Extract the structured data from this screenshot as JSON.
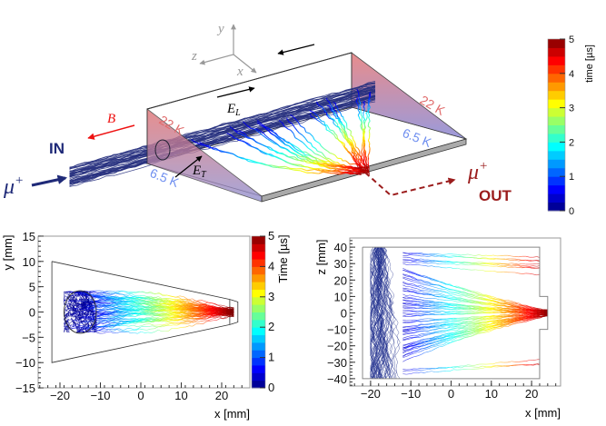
{
  "diagram": {
    "axes": {
      "x": "x",
      "y": "y",
      "z": "z"
    },
    "in_label": "IN",
    "out_label": "OUT",
    "muon": {
      "symbol": "μ",
      "sup": "+"
    },
    "b_field": {
      "symbol": "B"
    },
    "e_long": {
      "symbol": "E",
      "sub": "L"
    },
    "e_trans": {
      "symbol": "E",
      "sub": "T"
    },
    "temp_hot": "22 K",
    "temp_cold": "6.5 K",
    "colors": {
      "in": "#1f2a78",
      "out": "#9b1c1c",
      "b_field": "#ee1111",
      "hot": "#e06a6a",
      "cold": "#6f8ff0"
    },
    "colorbar": {
      "title": "time [µs]",
      "range": [
        0,
        5
      ],
      "ticks": [
        "0",
        "1",
        "2",
        "3",
        "4",
        "5"
      ]
    }
  },
  "chart_data": [
    {
      "type": "line",
      "title": "",
      "xlabel": "x [mm]",
      "ylabel": "y [mm]",
      "xlim": [
        -25,
        27
      ],
      "ylim": [
        -15,
        15
      ],
      "xticks": [
        "-20",
        "-10",
        "0",
        "10",
        "20"
      ],
      "yticks": [
        "-15",
        "-10",
        "-5",
        "0",
        "5",
        "10",
        "15"
      ],
      "outline": {
        "x": [
          -22,
          22,
          24,
          24,
          22,
          -22,
          -22
        ],
        "y": [
          10,
          2.5,
          2,
          -2,
          -2.5,
          -10,
          10
        ]
      },
      "stop_region": {
        "center": [
          -15,
          0
        ],
        "radius": 4
      },
      "colorbar": {
        "label": "Time [µs]",
        "range": [
          0,
          5
        ],
        "ticks": [
          "0",
          "1",
          "2",
          "3",
          "4",
          "5"
        ]
      }
    },
    {
      "type": "line",
      "title": "",
      "xlabel": "x [mm]",
      "ylabel": "z [mm]",
      "xlim": [
        -25,
        27
      ],
      "ylim": [
        -45,
        45
      ],
      "xticks": [
        "-20",
        "-10",
        "0",
        "10",
        "20"
      ],
      "yticks": [
        "-40",
        "-30",
        "-20",
        "-10",
        "0",
        "10",
        "20",
        "30",
        "40"
      ],
      "outline": {
        "x": [
          -22,
          22,
          22,
          24,
          24,
          22,
          22,
          -22,
          -22
        ],
        "y": [
          40,
          40,
          10,
          10,
          -10,
          -10,
          -40,
          -40,
          40
        ]
      }
    }
  ]
}
